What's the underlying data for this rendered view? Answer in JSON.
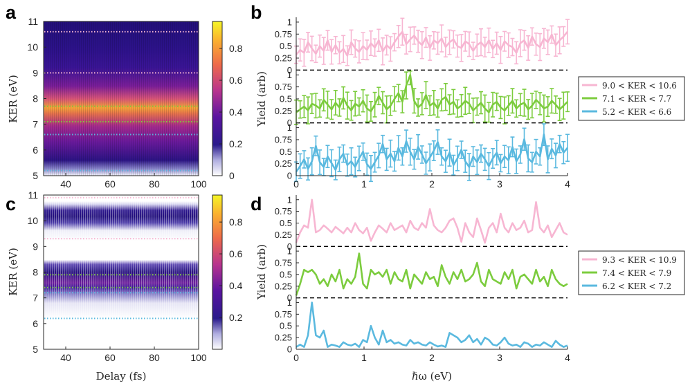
{
  "panels": {
    "a": "a",
    "b": "b",
    "c": "c",
    "d": "d"
  },
  "colors": {
    "pink": "#f7b6d2",
    "green": "#7ccc3e",
    "blue": "#5ab9df"
  },
  "chart_data": [
    {
      "id": "a",
      "type": "heatmap",
      "title": "",
      "xlabel": "",
      "ylabel": "KER (eV)",
      "xlim": [
        30,
        100
      ],
      "ylim": [
        5,
        11
      ],
      "xticks": [
        "40",
        "60",
        "80",
        "100"
      ],
      "yticks": [
        "5",
        "6",
        "7",
        "8",
        "9",
        "10",
        "11"
      ],
      "colorbar": {
        "range": [
          0,
          0.97
        ],
        "ticks": [
          "0",
          "0.2",
          "0.4",
          "0.6",
          "0.8"
        ]
      },
      "band_lines": [
        {
          "value": 10.6,
          "color": "pink"
        },
        {
          "value": 9.0,
          "color": "pink"
        },
        {
          "value": 7.7,
          "color": "green"
        },
        {
          "value": 7.1,
          "color": "green"
        },
        {
          "value": 6.6,
          "color": "blue"
        },
        {
          "value": 5.2,
          "color": "blue"
        }
      ]
    },
    {
      "id": "b",
      "type": "line",
      "xlabel": "",
      "ylabel": "Yield (arb)",
      "xlim": [
        0,
        4
      ],
      "xticks": [
        "0",
        "1",
        "2",
        "3",
        "4"
      ],
      "yticks": [
        "0",
        "0.25",
        "0.5",
        "0.75",
        "1"
      ],
      "error_bars": true,
      "legend": [
        "9.0 < KER < 10.6",
        "7.1 < KER < 7.7",
        "5.2 < KER < 6.6"
      ],
      "series": [
        {
          "name": "9.0 < KER < 10.6",
          "color": "pink",
          "values": [
            0.32,
            0.42,
            0.36,
            0.58,
            0.45,
            0.34,
            0.5,
            0.4,
            0.62,
            0.38,
            0.52,
            0.36,
            0.44,
            0.3,
            0.58,
            0.45,
            0.38,
            0.5,
            0.42,
            0.56,
            0.47,
            0.62,
            0.39,
            0.52,
            0.44,
            0.58,
            0.7,
            0.8,
            0.54,
            0.64,
            0.72,
            0.6,
            0.52,
            0.68,
            0.46,
            0.62,
            0.56,
            0.66,
            0.48,
            0.58,
            0.64,
            0.5,
            0.46,
            0.6,
            0.54,
            0.4,
            0.52,
            0.58,
            0.48,
            0.62,
            0.44,
            0.56,
            0.42,
            0.6,
            0.52,
            0.48,
            0.36,
            0.56,
            0.62,
            0.46,
            0.7,
            0.54,
            0.48,
            0.66,
            0.58,
            0.74,
            0.52,
            0.62,
            0.7,
            0.8
          ]
        },
        {
          "name": "7.1 < KER < 7.7",
          "color": "green",
          "values": [
            0.22,
            0.28,
            0.34,
            0.26,
            0.4,
            0.36,
            0.3,
            0.48,
            0.38,
            0.28,
            0.42,
            0.32,
            0.52,
            0.36,
            0.26,
            0.4,
            0.34,
            0.46,
            0.3,
            0.24,
            0.38,
            0.56,
            0.42,
            0.28,
            0.36,
            0.5,
            0.62,
            0.44,
            0.78,
            1.0,
            0.46,
            0.32,
            0.4,
            0.58,
            0.36,
            0.42,
            0.3,
            0.48,
            0.54,
            0.38,
            0.44,
            0.3,
            0.36,
            0.46,
            0.4,
            0.26,
            0.34,
            0.42,
            0.3,
            0.22,
            0.38,
            0.44,
            0.32,
            0.26,
            0.36,
            0.46,
            0.3,
            0.38,
            0.42,
            0.28,
            0.36,
            0.48,
            0.4,
            0.3,
            0.34,
            0.46,
            0.38,
            0.28,
            0.36,
            0.44
          ]
        },
        {
          "name": "5.2 < KER < 6.6",
          "color": "blue",
          "values": [
            0.08,
            0.2,
            0.34,
            0.14,
            0.3,
            0.62,
            0.28,
            0.18,
            0.4,
            0.26,
            0.12,
            0.34,
            0.46,
            0.22,
            0.3,
            0.18,
            0.36,
            0.5,
            0.24,
            0.14,
            0.28,
            0.42,
            0.66,
            0.34,
            0.46,
            0.3,
            0.58,
            0.4,
            0.72,
            0.5,
            0.34,
            0.6,
            0.44,
            0.26,
            0.38,
            0.52,
            0.7,
            0.4,
            0.3,
            0.48,
            0.22,
            0.36,
            0.54,
            0.3,
            0.18,
            0.4,
            0.28,
            0.46,
            0.34,
            0.2,
            0.36,
            0.48,
            0.26,
            0.4,
            0.32,
            0.6,
            0.3,
            0.44,
            0.76,
            0.36,
            0.28,
            0.5,
            0.4,
            0.86,
            0.34,
            0.56,
            0.42,
            0.66,
            0.48,
            0.58
          ]
        }
      ]
    },
    {
      "id": "c",
      "type": "heatmap",
      "xlabel": "Delay (fs)",
      "ylabel": "KER (eV)",
      "xlim": [
        30,
        100
      ],
      "ylim": [
        5,
        11
      ],
      "xticks": [
        "40",
        "60",
        "80",
        "100"
      ],
      "yticks": [
        "5",
        "6",
        "7",
        "8",
        "9",
        "10",
        "11"
      ],
      "colorbar": {
        "range": [
          0,
          0.97
        ],
        "ticks": [
          "0.2",
          "0.4",
          "0.6",
          "0.8"
        ]
      },
      "band_lines": [
        {
          "value": 10.9,
          "color": "pink"
        },
        {
          "value": 9.3,
          "color": "pink"
        },
        {
          "value": 7.9,
          "color": "green"
        },
        {
          "value": 7.4,
          "color": "green"
        },
        {
          "value": 7.2,
          "color": "blue"
        },
        {
          "value": 6.2,
          "color": "blue"
        }
      ]
    },
    {
      "id": "d",
      "type": "line",
      "xlabel": "ℏω (eV)",
      "ylabel": "Yield (arb)",
      "xlim": [
        0,
        4
      ],
      "xticks": [
        "0",
        "1",
        "2",
        "3",
        "4"
      ],
      "yticks": [
        "0",
        "0.25",
        "0.5",
        "0.75",
        "1"
      ],
      "legend": [
        "9.3 < KER < 10.9",
        "7.4 < KER < 7.9",
        "6.2 < KER < 7.2"
      ],
      "series": [
        {
          "name": "9.3 < KER < 10.9",
          "color": "pink",
          "values": [
            0.08,
            0.3,
            0.45,
            0.4,
            1.0,
            0.3,
            0.35,
            0.45,
            0.38,
            0.3,
            0.42,
            0.35,
            0.28,
            0.4,
            0.3,
            0.5,
            0.35,
            0.28,
            0.4,
            0.12,
            0.3,
            0.45,
            0.38,
            0.3,
            0.5,
            0.35,
            0.4,
            0.45,
            0.3,
            0.55,
            0.4,
            0.35,
            0.5,
            0.4,
            0.8,
            0.45,
            0.35,
            0.3,
            0.4,
            0.55,
            0.6,
            0.4,
            0.1,
            0.5,
            0.3,
            0.2,
            0.6,
            0.35,
            0.08,
            0.4,
            0.5,
            0.3,
            0.7,
            0.4,
            0.3,
            0.5,
            0.35,
            0.4,
            0.55,
            0.3,
            0.35,
            0.95,
            0.4,
            0.3,
            0.45,
            0.2,
            0.35,
            0.5,
            0.3,
            0.25
          ]
        },
        {
          "name": "7.4 < KER < 7.9",
          "color": "green",
          "values": [
            0.05,
            0.3,
            0.6,
            0.55,
            0.6,
            0.5,
            0.3,
            0.4,
            0.25,
            0.5,
            0.35,
            0.6,
            0.2,
            0.4,
            0.3,
            0.45,
            0.95,
            0.3,
            0.2,
            0.6,
            0.5,
            0.55,
            0.45,
            0.6,
            0.3,
            0.55,
            0.4,
            0.35,
            0.6,
            0.2,
            0.5,
            0.4,
            0.3,
            0.55,
            0.4,
            0.45,
            0.25,
            0.7,
            0.45,
            0.3,
            0.55,
            0.4,
            0.6,
            0.35,
            0.4,
            0.5,
            0.75,
            0.35,
            0.25,
            0.6,
            0.4,
            0.35,
            0.3,
            0.55,
            0.4,
            0.6,
            0.2,
            0.45,
            0.5,
            0.4,
            0.3,
            0.6,
            0.35,
            0.45,
            0.25,
            0.6,
            0.4,
            0.3,
            0.25,
            0.3
          ]
        },
        {
          "name": "6.2 < KER < 7.2",
          "color": "blue",
          "values": [
            0.05,
            0.1,
            0.05,
            0.3,
            1.0,
            0.3,
            0.25,
            0.4,
            0.05,
            0.1,
            0.08,
            0.05,
            0.15,
            0.1,
            0.08,
            0.12,
            0.05,
            0.2,
            0.15,
            0.5,
            0.25,
            0.1,
            0.4,
            0.15,
            0.2,
            0.12,
            0.15,
            0.1,
            0.08,
            0.2,
            0.12,
            0.15,
            0.1,
            0.08,
            0.15,
            0.1,
            0.06,
            0.08,
            0.05,
            0.35,
            0.3,
            0.25,
            0.15,
            0.2,
            0.3,
            0.15,
            0.22,
            0.1,
            0.25,
            0.2,
            0.1,
            0.08,
            0.15,
            0.25,
            0.12,
            0.08,
            0.1,
            0.05,
            0.15,
            0.12,
            0.05,
            0.1,
            0.08,
            0.15,
            0.1,
            0.05,
            0.18,
            0.1,
            0.05,
            0.08
          ]
        }
      ]
    }
  ]
}
